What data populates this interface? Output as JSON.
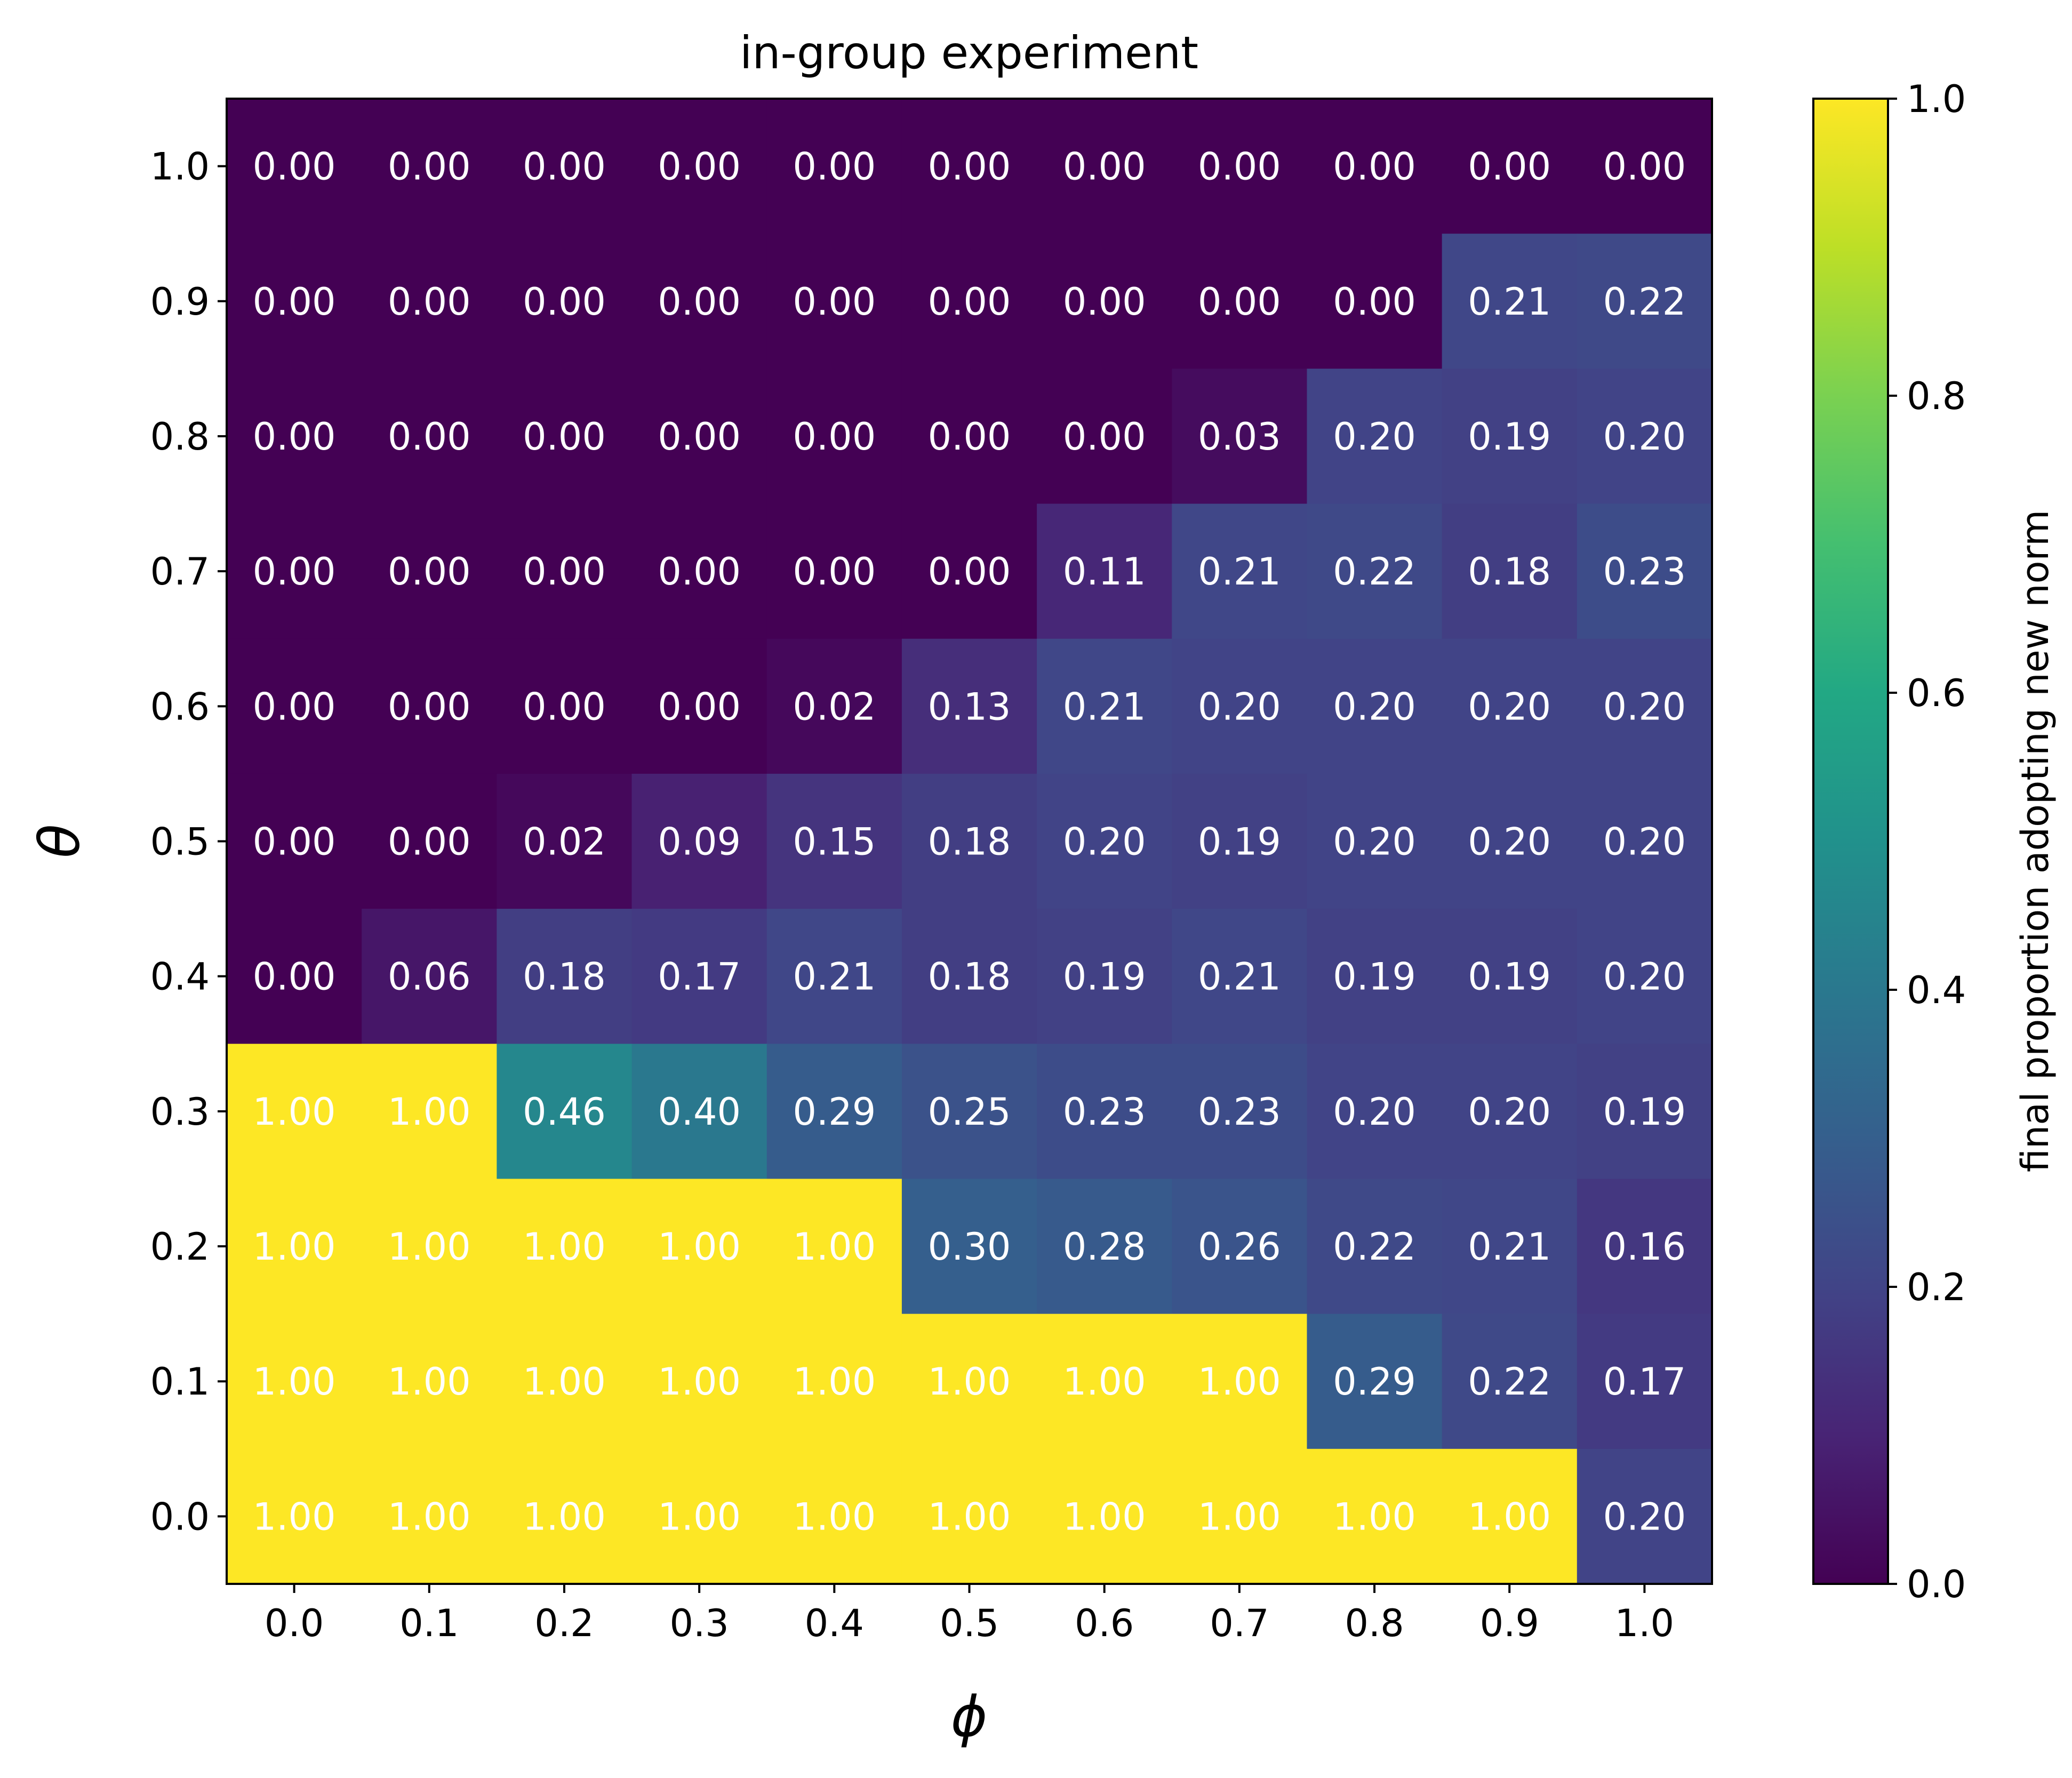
{
  "chart_data": {
    "type": "heatmap",
    "title": "in-group experiment",
    "xlabel": "ϕ",
    "ylabel": "θ",
    "x_categories": [
      "0.0",
      "0.1",
      "0.2",
      "0.3",
      "0.4",
      "0.5",
      "0.6",
      "0.7",
      "0.8",
      "0.9",
      "1.0"
    ],
    "y_categories": [
      "1.0",
      "0.9",
      "0.8",
      "0.7",
      "0.6",
      "0.5",
      "0.4",
      "0.3",
      "0.2",
      "0.1",
      "0.0"
    ],
    "values": [
      [
        0.0,
        0.0,
        0.0,
        0.0,
        0.0,
        0.0,
        0.0,
        0.0,
        0.0,
        0.0,
        0.0
      ],
      [
        0.0,
        0.0,
        0.0,
        0.0,
        0.0,
        0.0,
        0.0,
        0.0,
        0.0,
        0.21,
        0.22
      ],
      [
        0.0,
        0.0,
        0.0,
        0.0,
        0.0,
        0.0,
        0.0,
        0.03,
        0.2,
        0.19,
        0.2
      ],
      [
        0.0,
        0.0,
        0.0,
        0.0,
        0.0,
        0.0,
        0.11,
        0.21,
        0.22,
        0.18,
        0.23
      ],
      [
        0.0,
        0.0,
        0.0,
        0.0,
        0.02,
        0.13,
        0.21,
        0.2,
        0.2,
        0.2,
        0.2
      ],
      [
        0.0,
        0.0,
        0.02,
        0.09,
        0.15,
        0.18,
        0.2,
        0.19,
        0.2,
        0.2,
        0.2
      ],
      [
        0.0,
        0.06,
        0.18,
        0.17,
        0.21,
        0.18,
        0.19,
        0.21,
        0.19,
        0.19,
        0.2
      ],
      [
        1.0,
        1.0,
        0.46,
        0.4,
        0.29,
        0.25,
        0.23,
        0.23,
        0.2,
        0.2,
        0.19
      ],
      [
        1.0,
        1.0,
        1.0,
        1.0,
        1.0,
        0.3,
        0.28,
        0.26,
        0.22,
        0.21,
        0.16
      ],
      [
        1.0,
        1.0,
        1.0,
        1.0,
        1.0,
        1.0,
        1.0,
        1.0,
        0.29,
        0.22,
        0.17
      ],
      [
        1.0,
        1.0,
        1.0,
        1.0,
        1.0,
        1.0,
        1.0,
        1.0,
        1.0,
        1.0,
        0.2
      ]
    ],
    "value_format": "0.00",
    "cell_label_color": "#ffffff",
    "colormap": "viridis",
    "colorbar": {
      "label": "final proportion adopting new norm",
      "range": [
        0.0,
        1.0
      ],
      "ticks": [
        "0.0",
        "0.2",
        "0.4",
        "0.6",
        "0.8",
        "1.0"
      ]
    },
    "grid": false
  }
}
